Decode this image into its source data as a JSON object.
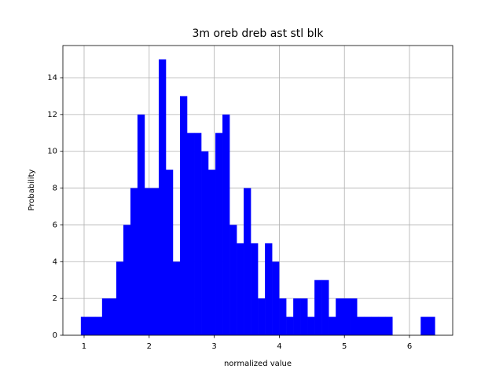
{
  "chart_data": {
    "type": "histogram",
    "title": "3m oreb dreb ast stl blk",
    "xlabel": "normalized value",
    "ylabel": "Probability",
    "bins": [
      0.95,
      1.059,
      1.168,
      1.276,
      1.385,
      1.494,
      1.603,
      1.712,
      1.82,
      1.929,
      2.038,
      2.147,
      2.256,
      2.364,
      2.473,
      2.582,
      2.691,
      2.8,
      2.908,
      3.017,
      3.126,
      3.235,
      3.344,
      3.452,
      3.561,
      3.67,
      3.779,
      3.888,
      3.996,
      4.105,
      4.214,
      4.323,
      4.432,
      4.54,
      4.649,
      4.758,
      4.867,
      4.976,
      5.084,
      5.193,
      5.302,
      5.411,
      5.52,
      5.628,
      5.737,
      5.846,
      5.955,
      6.064,
      6.172,
      6.281,
      6.39
    ],
    "values": [
      1,
      1,
      1,
      2,
      2,
      4,
      6,
      8,
      12,
      8,
      8,
      15,
      9,
      4,
      13,
      11,
      11,
      10,
      9,
      11,
      12,
      6,
      5,
      8,
      5,
      2,
      5,
      4,
      2,
      1,
      2,
      2,
      1,
      3,
      3,
      1,
      2,
      2,
      2,
      1,
      1,
      1,
      1,
      1,
      0,
      0,
      0,
      0,
      1,
      1
    ],
    "color": "#0000ff",
    "xlim": [
      0.674,
      6.664
    ],
    "xticks": [
      1,
      2,
      3,
      4,
      5,
      6
    ],
    "ylim": [
      0,
      15.75
    ],
    "yticks": [
      0,
      2,
      4,
      6,
      8,
      10,
      12,
      14
    ],
    "grid": true
  }
}
